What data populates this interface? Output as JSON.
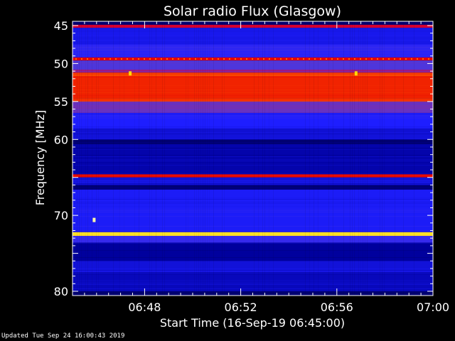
{
  "chart_data": {
    "type": "heatmap",
    "title": "Solar radio Flux (Glasgow)",
    "xlabel": "Start Time (16-Sep-19 06:45:00)",
    "ylabel": "Frequency [MHz]",
    "x_ticks": [
      "06:48",
      "06:52",
      "06:56",
      "07:00"
    ],
    "x_tick_minutes": [
      3,
      7,
      11,
      15
    ],
    "x_range_minutes": [
      0,
      15
    ],
    "y_ticks": [
      45,
      50,
      55,
      60,
      65,
      70,
      75,
      80
    ],
    "y_tick_labels": [
      "45",
      "50",
      "55",
      "60",
      "",
      "70",
      "",
      "80"
    ],
    "y_range_mhz": [
      45,
      80
    ],
    "y_inverted": true,
    "colormap": [
      "#000050",
      "#0000a0",
      "#1e1eff",
      "#5a3cd2",
      "#c80050",
      "#e60000",
      "#ff5000",
      "#ffd700",
      "#ffffc8"
    ],
    "bands": [
      {
        "from": 44.9,
        "to": 45.3,
        "level": 0.55
      },
      {
        "from": 45.3,
        "to": 47.5,
        "level": 0.22
      },
      {
        "from": 47.5,
        "to": 49.2,
        "level": 0.28
      },
      {
        "from": 49.2,
        "to": 49.6,
        "level": 0.62
      },
      {
        "from": 49.6,
        "to": 50.8,
        "level": 0.35
      },
      {
        "from": 50.8,
        "to": 51.2,
        "level": 0.45
      },
      {
        "from": 51.2,
        "to": 51.6,
        "level": 0.72
      },
      {
        "from": 51.6,
        "to": 54.6,
        "level": 0.68
      },
      {
        "from": 54.6,
        "to": 55.0,
        "level": 0.7
      },
      {
        "from": 55.0,
        "to": 56.5,
        "level": 0.4
      },
      {
        "from": 56.5,
        "to": 58.5,
        "level": 0.25
      },
      {
        "from": 58.5,
        "to": 60.0,
        "level": 0.2
      },
      {
        "from": 60.0,
        "to": 60.6,
        "level": 0.06
      },
      {
        "from": 60.6,
        "to": 64.6,
        "level": 0.14
      },
      {
        "from": 64.6,
        "to": 65.0,
        "level": 0.64
      },
      {
        "from": 65.0,
        "to": 66.0,
        "level": 0.2
      },
      {
        "from": 66.0,
        "to": 66.6,
        "level": 0.06
      },
      {
        "from": 66.6,
        "to": 72.2,
        "level": 0.24
      },
      {
        "from": 72.2,
        "to": 72.7,
        "level": 0.9
      },
      {
        "from": 72.7,
        "to": 73.6,
        "level": 0.3
      },
      {
        "from": 73.6,
        "to": 76.0,
        "level": 0.12
      },
      {
        "from": 76.0,
        "to": 77.5,
        "level": 0.2
      },
      {
        "from": 77.5,
        "to": 80.0,
        "level": 0.16
      },
      {
        "from": 80.0,
        "to": 80.4,
        "level": 0.05
      }
    ],
    "hotspots": [
      {
        "t_min": 2.4,
        "mhz": 51.3,
        "level": 0.88
      },
      {
        "t_min": 11.8,
        "mhz": 51.3,
        "level": 0.88
      },
      {
        "t_min": 0.9,
        "mhz": 70.6,
        "level": 0.98
      }
    ]
  },
  "footer": {
    "updated": "Updated Tue Sep 24 16:00:43 2019"
  }
}
